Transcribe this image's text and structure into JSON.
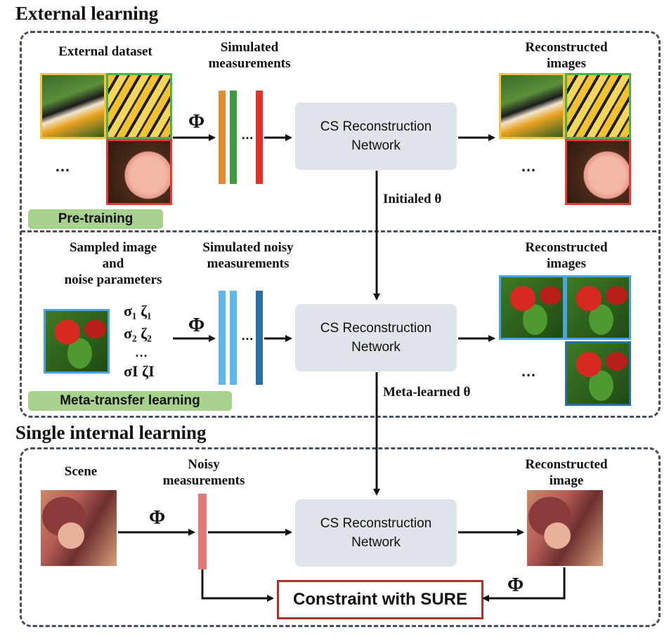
{
  "titles": {
    "external": "External learning",
    "single": "Single internal learning"
  },
  "external": {
    "dataset_label": "External dataset",
    "simulated_label_1": "Simulated",
    "simulated_label_2": "measurements",
    "reconstructed_label_1": "Reconstructed",
    "reconstructed_label_2": "images",
    "network_line1": "CS Reconstruction",
    "network_line2": "Network",
    "phi": "Φ",
    "ellipsis": "…",
    "dots_left": "…",
    "dots_right": "…",
    "pretraining_tag": "Pre-training",
    "theta_label": "Initialed θ"
  },
  "meta": {
    "sampled_1": "Sampled image",
    "sampled_2": "and",
    "sampled_3": "noise parameters",
    "noisy_label_1": "Simulated noisy",
    "noisy_label_2": "measurements",
    "reconstructed_label_1": "Reconstructed",
    "reconstructed_label_2": "images",
    "sigma_row1": "σ₁ ζ₁",
    "sigma_row2": "σ₂ ζ₂",
    "sigma_dots": "…",
    "sigma_row3": "σI ζI",
    "phi": "Φ",
    "ellipsis": "…",
    "network_line1": "CS Reconstruction",
    "network_line2": "Network",
    "dots_right": "…",
    "tag": "Meta-transfer learning",
    "theta_label": "Meta-learned θ"
  },
  "single": {
    "scene_label": "Scene",
    "noisy_label_1": "Noisy",
    "noisy_label_2": "measurements",
    "reconstructed_label_1": "Reconstructed",
    "reconstructed_label_2": "image",
    "phi_left": "Φ",
    "phi_right": "Φ",
    "network_line1": "CS  Reconstruction",
    "network_line2": "Network",
    "constraint": "Constraint with SURE"
  },
  "colors": {
    "bar_orange": "#e8892a",
    "bar_green": "#3d9a3d",
    "bar_red": "#e0332a",
    "bar_light_blue": "#5bb8ee",
    "bar_dark_blue": "#2b6fa3",
    "bar_pink": "#e07a7a",
    "frame_yellow": "#f5c342",
    "frame_green": "#4caf50",
    "frame_red": "#e53935",
    "frame_blue": "#4aa3df"
  }
}
